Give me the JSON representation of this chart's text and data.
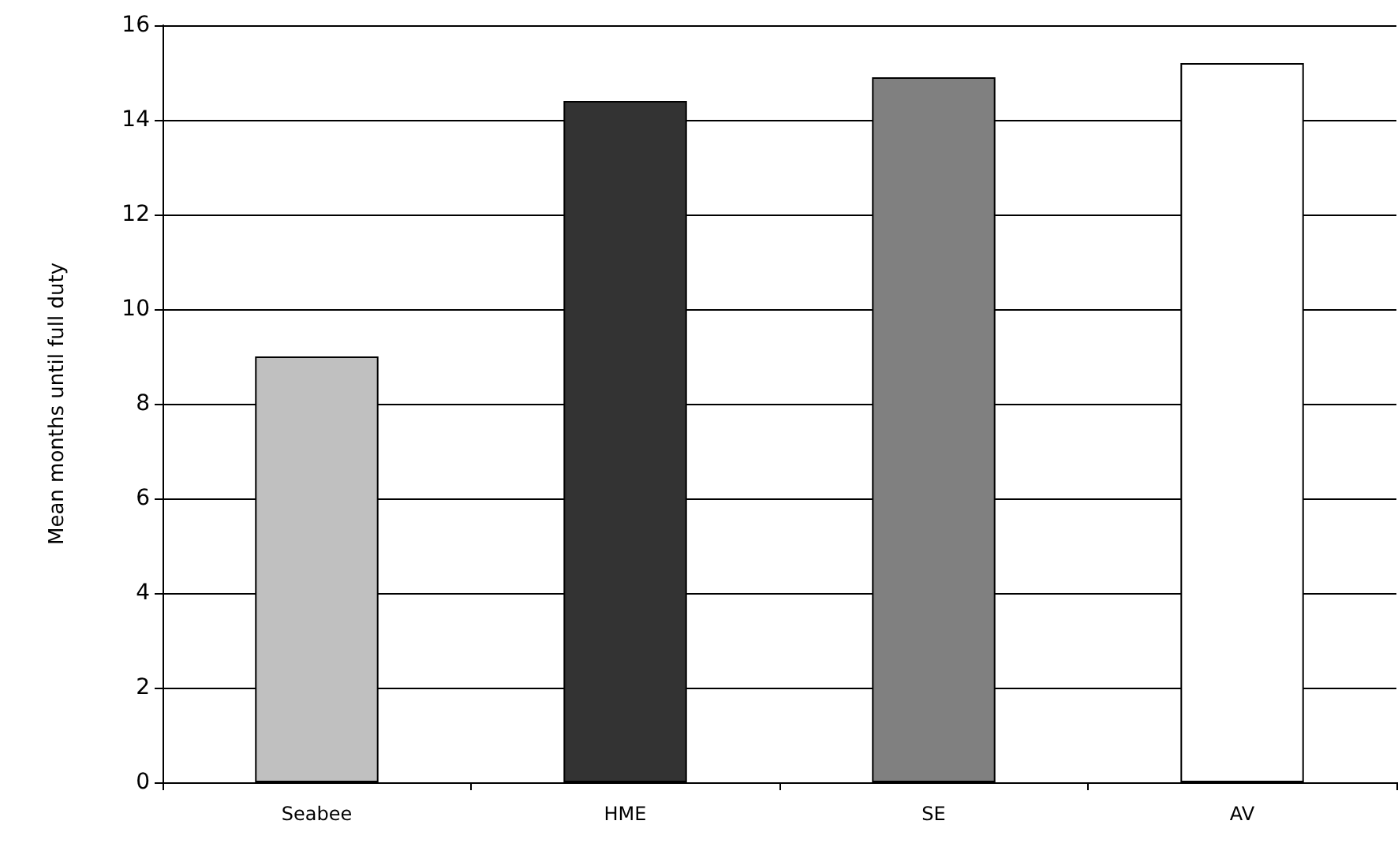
{
  "chart_data": {
    "type": "bar",
    "ylabel": "Mean months until full duty",
    "categories": [
      "Seabee",
      "HME",
      "SE",
      "AV"
    ],
    "values": [
      9.0,
      14.4,
      14.9,
      15.2
    ],
    "colors": [
      "#c0c0c0",
      "#333333",
      "#808080",
      "#ffffff"
    ],
    "ylim": [
      0,
      16
    ],
    "yticks": [
      0,
      2,
      4,
      6,
      8,
      10,
      12,
      14,
      16
    ],
    "grid": "y"
  }
}
